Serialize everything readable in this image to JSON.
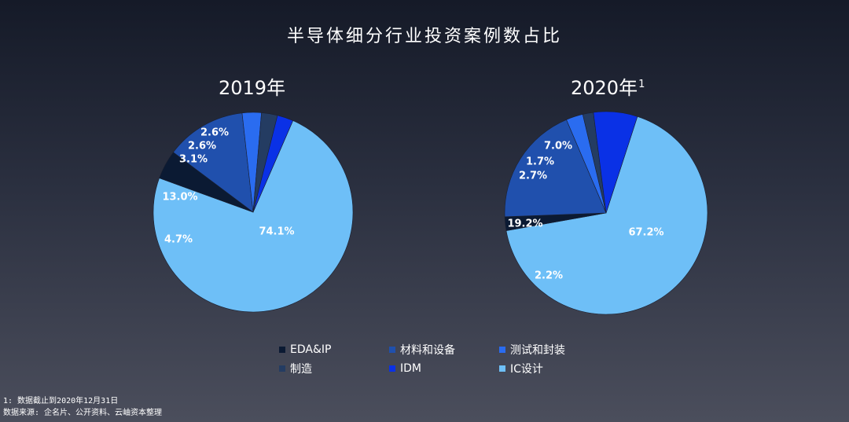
{
  "title": "半导体细分行业投资案例数占比",
  "footnotes": {
    "note1": "1: 数据截止到2020年12月31日",
    "source": "数据来源: 企名片、公开资料、云岫资本整理"
  },
  "legend": [
    {
      "label": "EDA&IP",
      "color": "#0b1a33"
    },
    {
      "label": "材料和设备",
      "color": "#2050ad"
    },
    {
      "label": "测试和封装",
      "color": "#2a6cf0"
    },
    {
      "label": "制造",
      "color": "#243c62"
    },
    {
      "label": "IDM",
      "color": "#0a31e6"
    },
    {
      "label": "IC设计",
      "color": "#6ebff7"
    }
  ],
  "chart_data": [
    {
      "type": "pie",
      "title": "2019年",
      "title_sup": "",
      "slices": [
        {
          "category": "IC设计",
          "value": 74.1,
          "label": "74.1%",
          "color": "#6ebff7"
        },
        {
          "category": "EDA&IP",
          "value": 4.7,
          "label": "4.7%",
          "color": "#0b1a33"
        },
        {
          "category": "材料和设备",
          "value": 13.0,
          "label": "13.0%",
          "color": "#2050ad"
        },
        {
          "category": "测试和封装",
          "value": 3.1,
          "label": "3.1%",
          "color": "#2a6cf0"
        },
        {
          "category": "制造",
          "value": 2.6,
          "label": "2.6%",
          "color": "#243c62"
        },
        {
          "category": "IDM",
          "value": 2.6,
          "label": "2.6%",
          "color": "#0a31e6"
        }
      ]
    },
    {
      "type": "pie",
      "title": "2020年",
      "title_sup": "1",
      "slices": [
        {
          "category": "IC设计",
          "value": 67.2,
          "label": "67.2%",
          "color": "#6ebff7"
        },
        {
          "category": "EDA&IP",
          "value": 2.2,
          "label": "2.2%",
          "color": "#0b1a33"
        },
        {
          "category": "材料和设备",
          "value": 19.2,
          "label": "19.2%",
          "color": "#2050ad"
        },
        {
          "category": "测试和封装",
          "value": 2.7,
          "label": "2.7%",
          "color": "#2a6cf0"
        },
        {
          "category": "制造",
          "value": 1.7,
          "label": "1.7%",
          "color": "#243c62"
        },
        {
          "category": "IDM",
          "value": 7.0,
          "label": "7.0%",
          "color": "#0a31e6"
        }
      ]
    }
  ]
}
